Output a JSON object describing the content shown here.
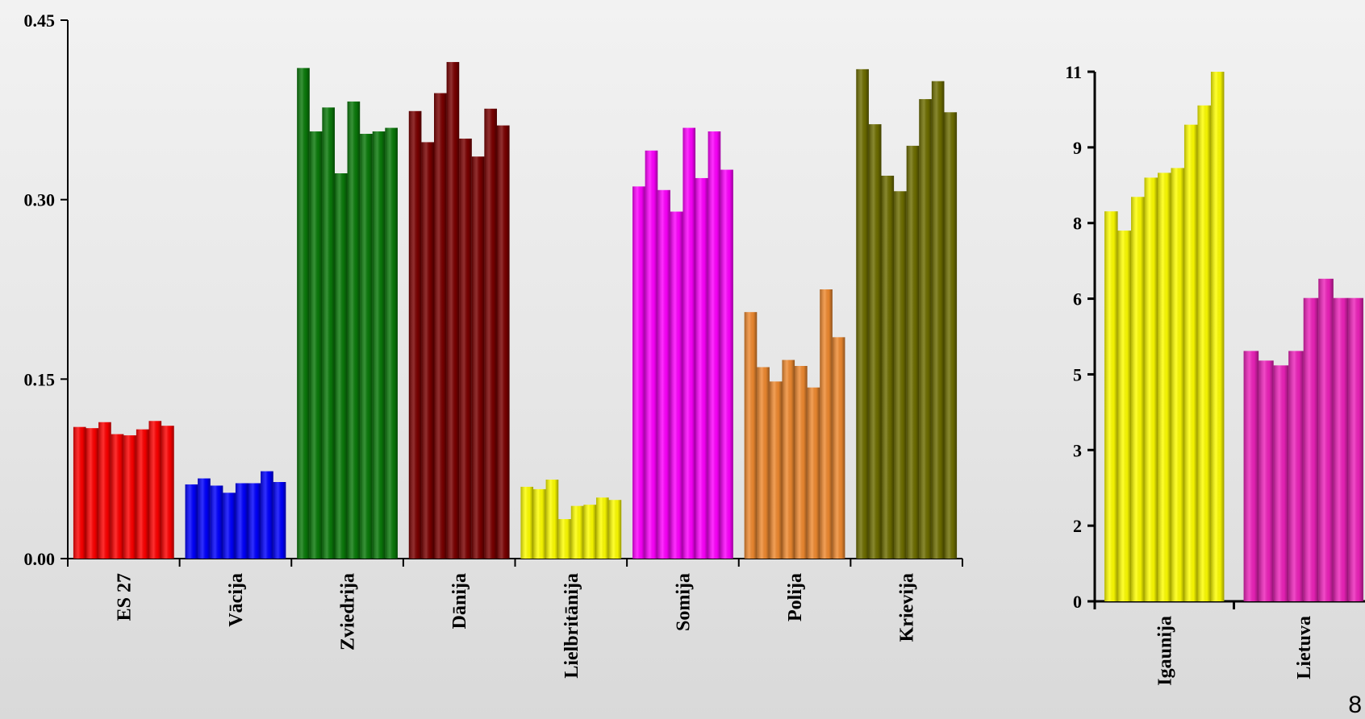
{
  "chart_data": [
    {
      "type": "bar",
      "title": "",
      "xlabel": "",
      "ylabel": "",
      "ylim": [
        0,
        0.45
      ],
      "y_ticks": [
        "0.00",
        "0.15",
        "0.30",
        "0.45"
      ],
      "y_tick_values": [
        0,
        0.15,
        0.3,
        0.45
      ],
      "grid": false,
      "categories": [
        "ES 27",
        "Vācija",
        "Zviedrija",
        "Dānija",
        "Lielbritānija",
        "Somija",
        "Polija",
        "Krievija"
      ],
      "colors": [
        "#ff0000",
        "#0000ff",
        "#0a7a0a",
        "#7a0000",
        "#ffff00",
        "#ff00ff",
        "#f08a30",
        "#6e6e00"
      ],
      "values": [
        [
          0.11,
          0.109,
          0.114,
          0.104,
          0.103,
          0.108,
          0.115,
          0.111
        ],
        [
          0.062,
          0.067,
          0.061,
          0.055,
          0.063,
          0.063,
          0.073,
          0.064
        ],
        [
          0.41,
          0.357,
          0.377,
          0.322,
          0.382,
          0.355,
          0.357,
          0.36
        ],
        [
          0.374,
          0.348,
          0.389,
          0.415,
          0.351,
          0.336,
          0.376,
          0.362
        ],
        [
          0.06,
          0.058,
          0.066,
          0.033,
          0.044,
          0.045,
          0.051,
          0.049
        ],
        [
          0.311,
          0.341,
          0.308,
          0.29,
          0.36,
          0.318,
          0.357,
          0.325
        ],
        [
          0.206,
          0.16,
          0.148,
          0.166,
          0.161,
          0.143,
          0.225,
          0.185
        ],
        [
          0.409,
          0.363,
          0.32,
          0.307,
          0.345,
          0.384,
          0.399,
          0.373
        ]
      ]
    },
    {
      "type": "bar",
      "title": "",
      "xlabel": "",
      "ylabel": "",
      "ylim": [
        0,
        11
      ],
      "y_ticks": [
        "0",
        "2",
        "3",
        "5",
        "6",
        "8",
        "9",
        "11"
      ],
      "y_tick_values": [
        0,
        1.571,
        3.143,
        4.714,
        6.286,
        7.857,
        9.429,
        11
      ],
      "grid": false,
      "categories": [
        "Igaunija",
        "Lietuva"
      ],
      "colors": [
        "#ffff00",
        "#ee22bb"
      ],
      "values": [
        [
          8.1,
          7.7,
          8.4,
          8.8,
          8.9,
          9.0,
          9.9,
          10.3,
          11.0
        ],
        [
          5.2,
          5.0,
          4.9,
          5.2,
          6.3,
          6.7,
          6.3,
          6.3
        ]
      ]
    }
  ],
  "page_number": "8"
}
